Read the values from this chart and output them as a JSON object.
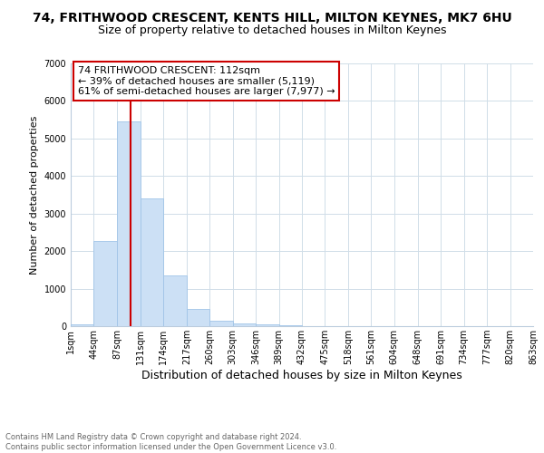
{
  "title": "74, FRITHWOOD CRESCENT, KENTS HILL, MILTON KEYNES, MK7 6HU",
  "subtitle": "Size of property relative to detached houses in Milton Keynes",
  "xlabel": "Distribution of detached houses by size in Milton Keynes",
  "ylabel": "Number of detached properties",
  "bar_color": "#cce0f5",
  "bar_edge_color": "#a0c4e8",
  "vline_color": "#cc0000",
  "vline_x": 112,
  "annotation_line1": "74 FRITHWOOD CRESCENT: 112sqm",
  "annotation_line2": "← 39% of detached houses are smaller (5,119)",
  "annotation_line3": "61% of semi-detached houses are larger (7,977) →",
  "annotation_box_color": "#ffffff",
  "annotation_box_edge": "#cc0000",
  "ylim": [
    0,
    7000
  ],
  "yticks": [
    0,
    1000,
    2000,
    3000,
    4000,
    5000,
    6000,
    7000
  ],
  "bin_edges": [
    1,
    44,
    87,
    131,
    174,
    217,
    260,
    303,
    346,
    389,
    432,
    475,
    518,
    561,
    604,
    648,
    691,
    734,
    777,
    820,
    863
  ],
  "bin_values": [
    60,
    2270,
    5450,
    3400,
    1350,
    450,
    155,
    80,
    45,
    25,
    0,
    0,
    0,
    0,
    0,
    0,
    0,
    0,
    0,
    0
  ],
  "xtick_labels": [
    "1sqm",
    "44sqm",
    "87sqm",
    "131sqm",
    "174sqm",
    "217sqm",
    "260sqm",
    "303sqm",
    "346sqm",
    "389sqm",
    "432sqm",
    "475sqm",
    "518sqm",
    "561sqm",
    "604sqm",
    "648sqm",
    "691sqm",
    "734sqm",
    "777sqm",
    "820sqm",
    "863sqm"
  ],
  "footer_line1": "Contains HM Land Registry data © Crown copyright and database right 2024.",
  "footer_line2": "Contains public sector information licensed under the Open Government Licence v3.0.",
  "bg_color": "#ffffff",
  "grid_color": "#d0dde8",
  "title_fontsize": 10,
  "subtitle_fontsize": 9,
  "ylabel_fontsize": 8,
  "xlabel_fontsize": 9,
  "tick_fontsize": 7,
  "footer_fontsize": 6,
  "annot_fontsize": 8
}
